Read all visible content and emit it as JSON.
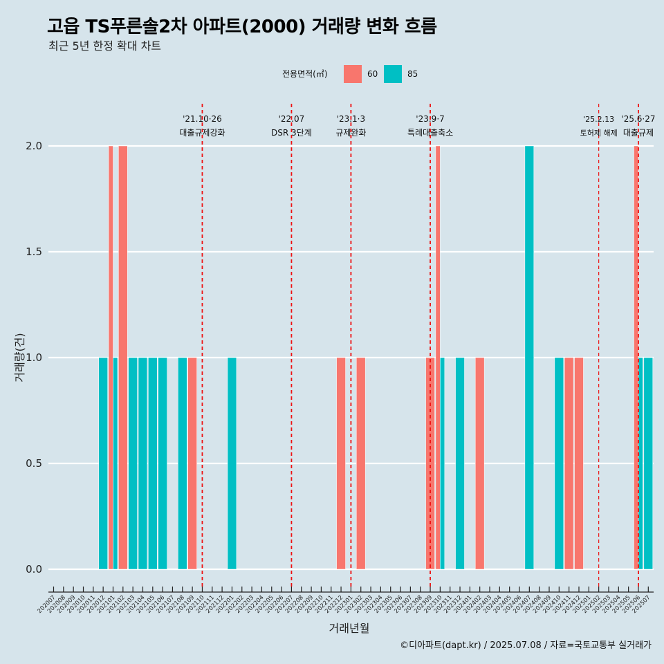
{
  "title": "고읍 TS푸른솔2차 아파트(2000) 거래량 변화 흐름",
  "subtitle": "최근 5년 한정 확대 차트",
  "caption": "©디아파트(dapt.kr) / 2025.07.08 / 자료=국토교통부 실거래가",
  "chart_data": {
    "type": "bar",
    "xlabel": "거래년월",
    "ylabel": "거래량(건)",
    "ylim": [
      0,
      2
    ],
    "yticks": [
      "0.0",
      "0.5",
      "1.0",
      "1.5",
      "2.0"
    ],
    "grid": true,
    "legend": {
      "title": "전용면적(㎡)",
      "position": "top"
    },
    "categories": [
      "202007",
      "202008",
      "202009",
      "202010",
      "202011",
      "202012",
      "202101",
      "202102",
      "202103",
      "202104",
      "202105",
      "202106",
      "202107",
      "202108",
      "202109",
      "202110",
      "202111",
      "202112",
      "202201",
      "202202",
      "202203",
      "202204",
      "202205",
      "202206",
      "202207",
      "202208",
      "202209",
      "202210",
      "202211",
      "202212",
      "202301",
      "202302",
      "202303",
      "202304",
      "202305",
      "202306",
      "202307",
      "202308",
      "202309",
      "202310",
      "202311",
      "202312",
      "202401",
      "202402",
      "202403",
      "202404",
      "202405",
      "202406",
      "202407",
      "202408",
      "202409",
      "202410",
      "202411",
      "202412",
      "202501",
      "202502",
      "202503",
      "202504",
      "202505",
      "202506",
      "202507"
    ],
    "series": [
      {
        "name": "60",
        "color": "#f8766d",
        "values": [
          0,
          0,
          0,
          0,
          0,
          0,
          2,
          2,
          0,
          0,
          0,
          0,
          0,
          0,
          1,
          0,
          0,
          0,
          0,
          0,
          0,
          0,
          0,
          0,
          0,
          0,
          0,
          0,
          0,
          1,
          0,
          1,
          0,
          0,
          0,
          0,
          0,
          0,
          1,
          2,
          0,
          0,
          0,
          1,
          0,
          0,
          0,
          0,
          0,
          0,
          0,
          0,
          1,
          1,
          0,
          0,
          0,
          0,
          0,
          2,
          0
        ]
      },
      {
        "name": "85",
        "color": "#00bfc4",
        "values": [
          0,
          0,
          0,
          0,
          0,
          1,
          1,
          0,
          1,
          1,
          1,
          1,
          0,
          1,
          0,
          0,
          0,
          0,
          1,
          0,
          0,
          0,
          0,
          0,
          0,
          0,
          0,
          0,
          0,
          0,
          0,
          0,
          0,
          0,
          0,
          0,
          0,
          0,
          0,
          1,
          0,
          1,
          0,
          0,
          0,
          0,
          0,
          0,
          2,
          0,
          0,
          1,
          0,
          0,
          0,
          0,
          0,
          0,
          0,
          1,
          1
        ]
      }
    ],
    "annotations": [
      {
        "line1": "'21.10·26",
        "line2": "대출규제강화",
        "category": "202110",
        "small": false
      },
      {
        "line1": "'22.07",
        "line2": "DSR 3단계",
        "category": "202207",
        "small": false
      },
      {
        "line1": "'23.1·3",
        "line2": "규제완화",
        "category": "202301",
        "small": false
      },
      {
        "line1": "'23.9·7",
        "line2": "특례대출축소",
        "category": "202309",
        "small": false
      },
      {
        "line1": "'25.2.13",
        "line2": "토허제 해제",
        "category": "202502",
        "small": true
      },
      {
        "line1": "'25.6·27",
        "line2": "대출규제",
        "category": "202506",
        "small": false
      }
    ]
  }
}
